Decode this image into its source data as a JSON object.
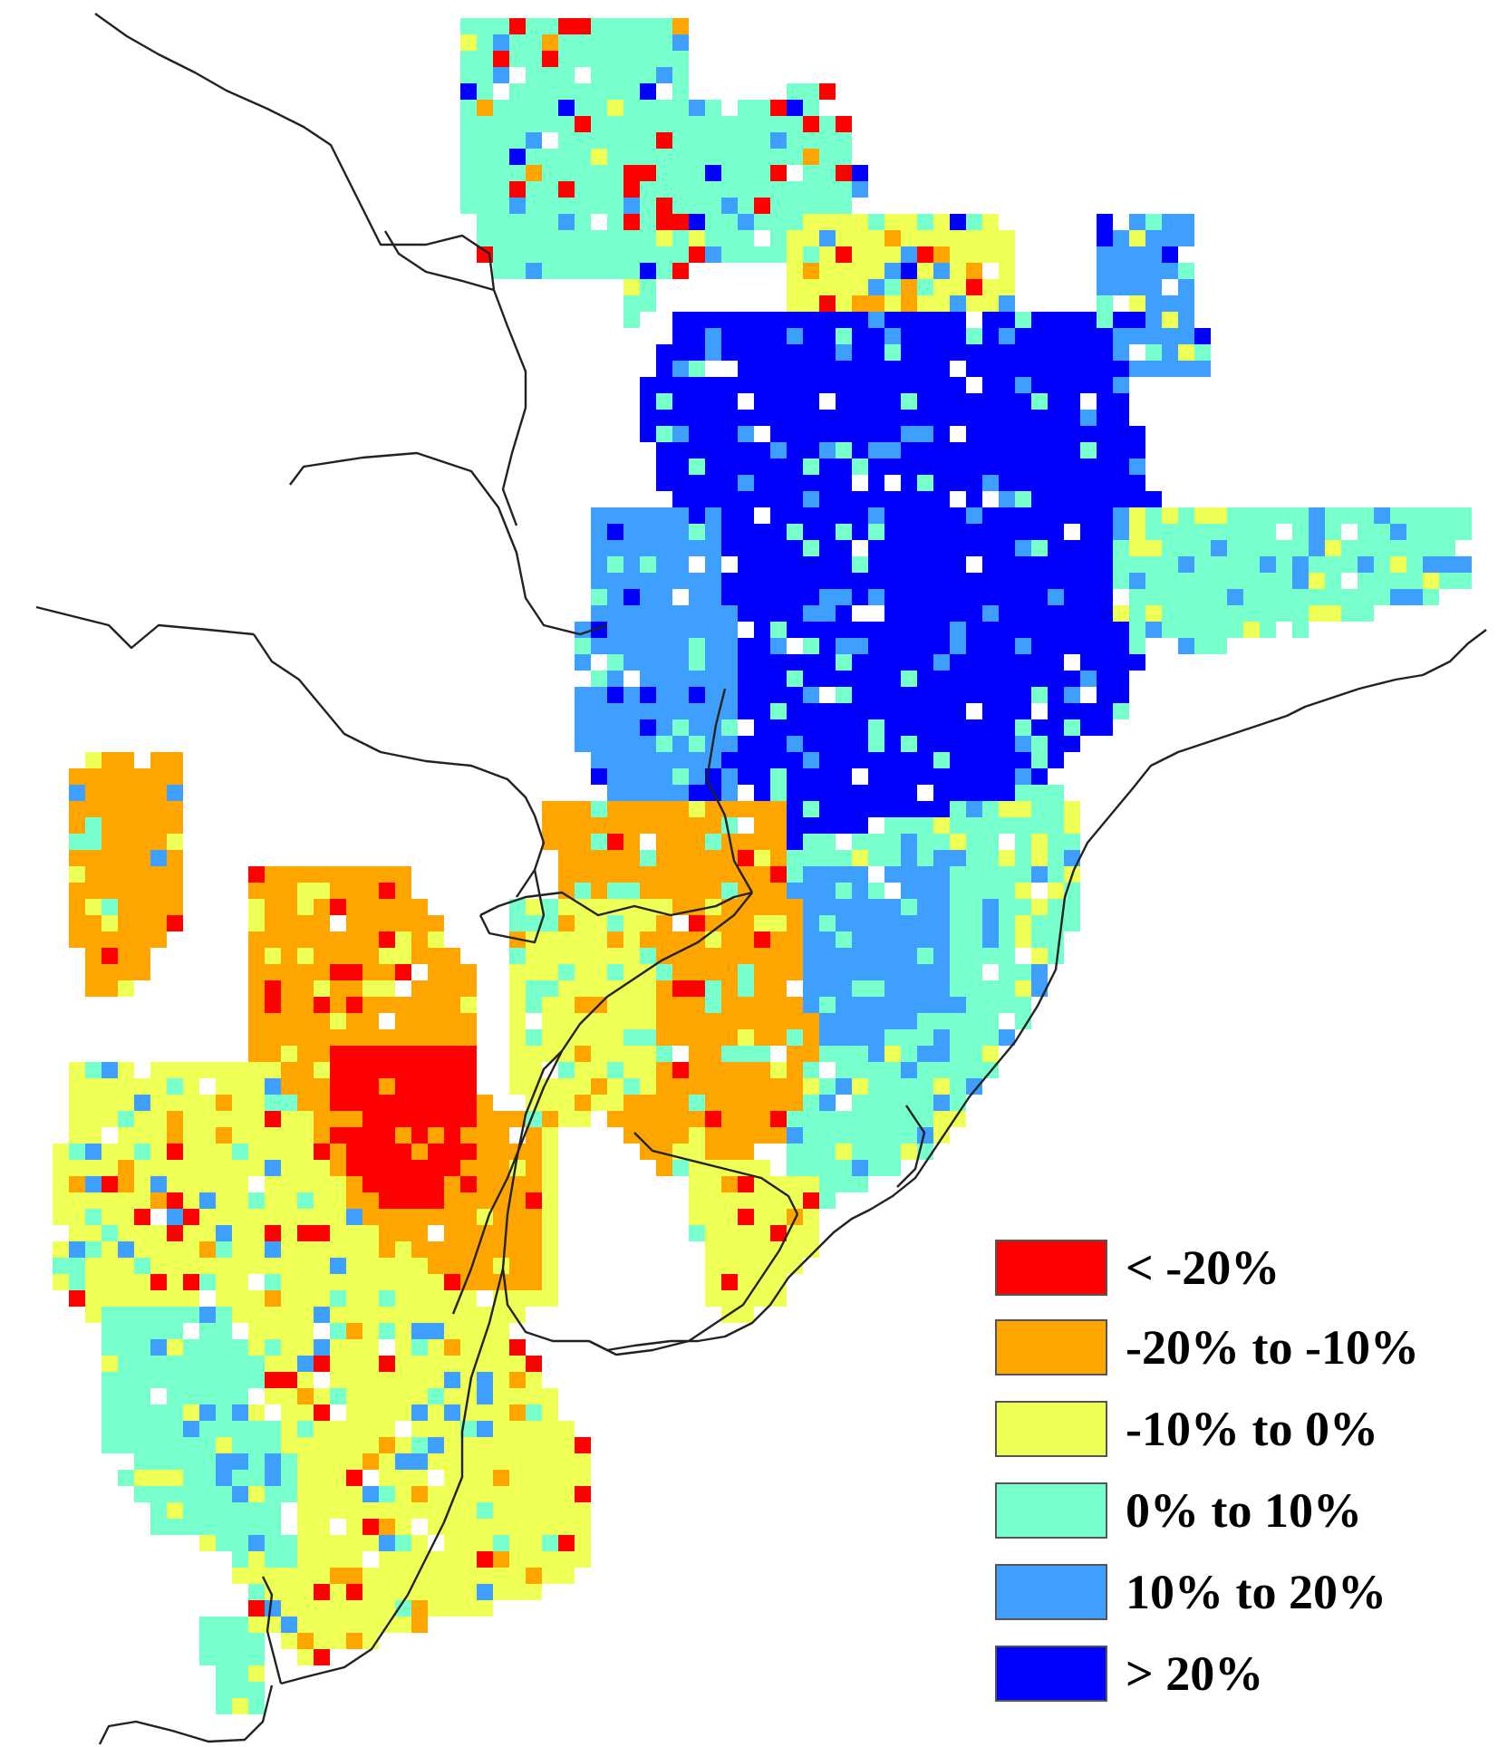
{
  "legend": {
    "items": [
      {
        "label": "< -20%",
        "color": "#ff0000"
      },
      {
        "label": "-20% to -10%",
        "color": "#ffa500"
      },
      {
        "label": "-10% to 0%",
        "color": "#eeff55"
      },
      {
        "label": " 0% to 10%",
        "color": "#77ffcc"
      },
      {
        "label": " 10% to 20%",
        "color": "#3f9fff"
      },
      {
        "label": "> 20%",
        "color": "#0000ff"
      }
    ]
  }
}
